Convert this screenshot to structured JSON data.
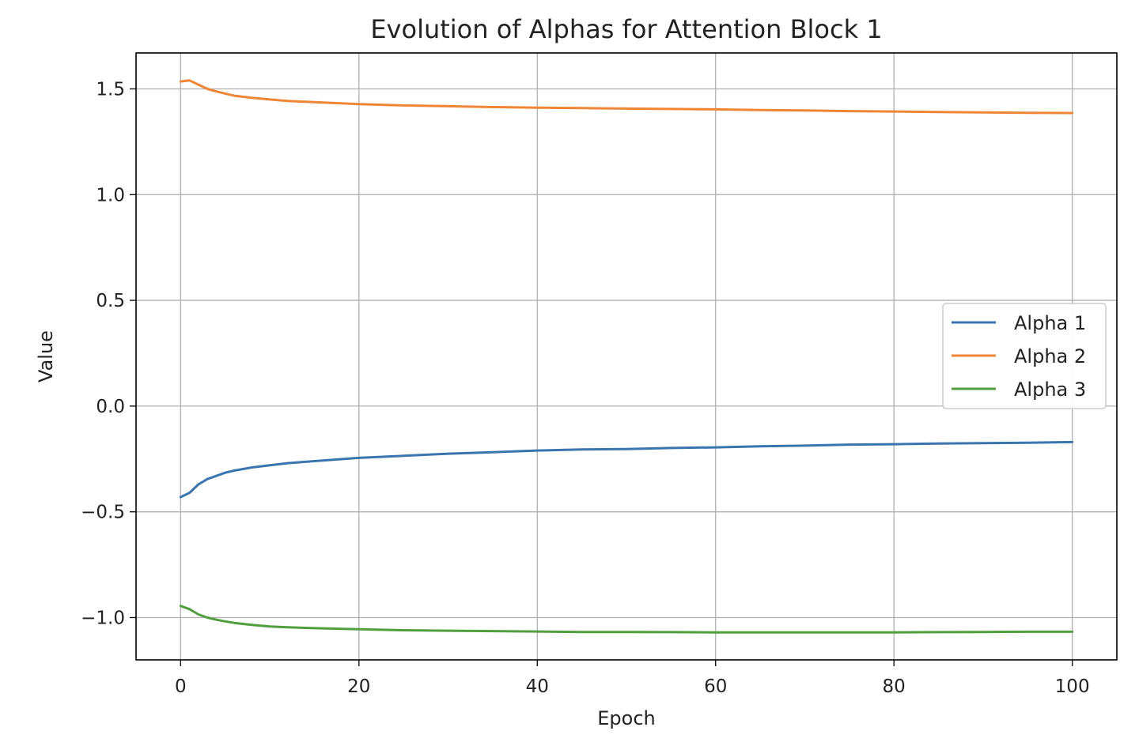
{
  "chart_data": {
    "type": "line",
    "title": "Evolution of Alphas for Attention Block 1",
    "xlabel": "Epoch",
    "ylabel": "Value",
    "xlim": [
      -5,
      105
    ],
    "ylim": [
      -1.2,
      1.67
    ],
    "xticks": [
      0,
      20,
      40,
      60,
      80,
      100
    ],
    "yticks": [
      -1.0,
      -0.5,
      0.0,
      0.5,
      1.0,
      1.5
    ],
    "xtick_labels": [
      "0",
      "20",
      "40",
      "60",
      "80",
      "100"
    ],
    "ytick_labels": [
      "−1.0",
      "−0.5",
      "0.0",
      "0.5",
      "1.0",
      "1.5"
    ],
    "grid": true,
    "legend_position": "center-right",
    "x": [
      0,
      1,
      2,
      3,
      4,
      5,
      6,
      8,
      10,
      12,
      15,
      20,
      25,
      30,
      35,
      40,
      45,
      50,
      55,
      60,
      65,
      70,
      75,
      80,
      85,
      90,
      95,
      100
    ],
    "series": [
      {
        "name": "Alpha 1",
        "color": "#3b75af",
        "values": [
          -0.43,
          -0.41,
          -0.37,
          -0.345,
          -0.33,
          -0.315,
          -0.305,
          -0.29,
          -0.28,
          -0.27,
          -0.26,
          -0.245,
          -0.235,
          -0.225,
          -0.218,
          -0.21,
          -0.205,
          -0.203,
          -0.198,
          -0.195,
          -0.19,
          -0.187,
          -0.182,
          -0.18,
          -0.177,
          -0.175,
          -0.173,
          -0.17
        ]
      },
      {
        "name": "Alpha 2",
        "color": "#ef8636",
        "values": [
          1.535,
          1.54,
          1.52,
          1.5,
          1.488,
          1.478,
          1.468,
          1.458,
          1.45,
          1.443,
          1.437,
          1.428,
          1.422,
          1.418,
          1.414,
          1.411,
          1.409,
          1.407,
          1.405,
          1.403,
          1.4,
          1.398,
          1.395,
          1.393,
          1.391,
          1.389,
          1.387,
          1.386
        ]
      },
      {
        "name": "Alpha 3",
        "color": "#519e3e",
        "values": [
          -0.945,
          -0.96,
          -0.985,
          -1.0,
          -1.01,
          -1.018,
          -1.025,
          -1.035,
          -1.042,
          -1.046,
          -1.05,
          -1.055,
          -1.06,
          -1.062,
          -1.064,
          -1.066,
          -1.068,
          -1.068,
          -1.069,
          -1.07,
          -1.07,
          -1.07,
          -1.07,
          -1.07,
          -1.069,
          -1.068,
          -1.067,
          -1.067
        ]
      }
    ]
  }
}
